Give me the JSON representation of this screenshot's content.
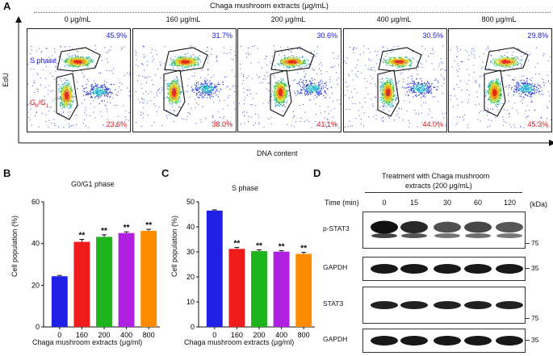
{
  "panelA": {
    "letter": "A",
    "header": "Chaga mushroom extracts (μg/mL)",
    "ylabel": "EdU",
    "xlabel": "DNA content",
    "s_phase_label": "S phase",
    "g1_label_main": "G",
    "g1_label_sub1": "0",
    "g1_label_mid": "/G",
    "g1_label_sub2": "1",
    "plots": [
      {
        "dose": "0 μg/mL",
        "s_pct": "45.9%",
        "g_pct": "23.6%"
      },
      {
        "dose": "160 μg/mL",
        "s_pct": "31.7%",
        "g_pct": "38.0%"
      },
      {
        "dose": "200 μg/mL",
        "s_pct": "30.6%",
        "g_pct": "41.1%"
      },
      {
        "dose": "400 μg/mL",
        "s_pct": "30.5%",
        "g_pct": "44.0%"
      },
      {
        "dose": "800 μg/mL",
        "s_pct": "29.8%",
        "g_pct": "45.3%"
      }
    ]
  },
  "chart_data": [
    {
      "type": "bar",
      "letter": "B",
      "title": "G0/G1 phase",
      "xlabel": "Chaga mushroom extracts (μg/ml)",
      "ylabel": "Cell population (%)",
      "categories": [
        "0",
        "160",
        "200",
        "400",
        "800"
      ],
      "values": [
        24.3,
        40.8,
        43.2,
        45.0,
        46.1
      ],
      "errors": [
        0.4,
        1.2,
        1.0,
        0.6,
        0.7
      ],
      "significance": [
        "",
        "**",
        "**",
        "**",
        "**"
      ],
      "colors": [
        "#1f1fe6",
        "#ee1c1c",
        "#1db31d",
        "#b020e0",
        "#ff8c00"
      ],
      "yticks": [
        "0",
        "20",
        "40",
        "60"
      ],
      "ylim": [
        0,
        60
      ]
    },
    {
      "type": "bar",
      "letter": "C",
      "title": "S phase",
      "xlabel": "Chaga mushroom extracts (μg/ml)",
      "ylabel": "Cell population (%)",
      "categories": [
        "0",
        "160",
        "200",
        "400",
        "800"
      ],
      "values": [
        46.5,
        31.2,
        30.3,
        30.1,
        29.2
      ],
      "errors": [
        0.3,
        0.6,
        0.5,
        0.4,
        0.6
      ],
      "significance": [
        "",
        "**",
        "**",
        "**",
        "**"
      ],
      "colors": [
        "#1f1fe6",
        "#ee1c1c",
        "#1db31d",
        "#b020e0",
        "#ff8c00"
      ],
      "yticks": [
        "0",
        "10",
        "20",
        "30",
        "40",
        "50"
      ],
      "ylim": [
        0,
        50
      ]
    }
  ],
  "panelD": {
    "letter": "D",
    "title_line1": "Treatment with Chaga mushroom",
    "title_line2": "extracts (200 μg/mL)",
    "time_label": "Time (min)",
    "times": [
      "0",
      "15",
      "30",
      "60",
      "120"
    ],
    "kda_label": "(kDa)",
    "blots": [
      {
        "label": "p-STAT3",
        "mw": "75",
        "intensities": [
          1.0,
          0.85,
          0.6,
          0.65,
          0.55
        ],
        "double": true
      },
      {
        "label": "GAPDH",
        "mw": "35",
        "intensities": [
          0.95,
          0.95,
          0.95,
          0.95,
          0.95
        ],
        "double": false
      },
      {
        "label": "STAT3",
        "mw": "75",
        "intensities": [
          0.9,
          0.9,
          0.9,
          0.9,
          0.9
        ],
        "double": false
      },
      {
        "label": "GAPDH",
        "mw": "35",
        "intensities": [
          0.95,
          0.95,
          0.95,
          0.95,
          0.95
        ],
        "double": false
      }
    ]
  }
}
